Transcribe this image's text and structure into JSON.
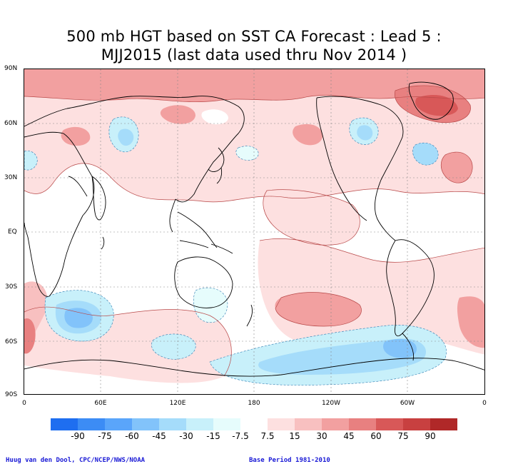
{
  "title": {
    "line1": "500 mb HGT based on SST CA Forecast : Lead 5 :",
    "line2": "MJJ2015 (last data used thru Nov 2014 )"
  },
  "axes": {
    "lat_labels": [
      "90N",
      "60N",
      "30N",
      "EQ",
      "30S",
      "60S",
      "90S"
    ],
    "lon_labels": [
      "0",
      "60E",
      "120E",
      "180",
      "120W",
      "60W",
      "0"
    ]
  },
  "colorbar": {
    "labels": [
      "-90",
      "-75",
      "-60",
      "-45",
      "-30",
      "-15",
      "-7.5",
      "7.5",
      "15",
      "30",
      "45",
      "60",
      "75",
      "90"
    ],
    "colors": [
      "#1e6ef0",
      "#3c8cf5",
      "#5aa5fa",
      "#82c3fa",
      "#a5dcfa",
      "#c8f0fa",
      "#e6fcfc",
      "#ffffff",
      "#fde0e0",
      "#f8c0c0",
      "#f2a0a0",
      "#e88080",
      "#d85858",
      "#c84040",
      "#b02828"
    ]
  },
  "credits": {
    "left": "Huug van den Dool, CPC/NCEP/NWS/NOAA",
    "right": "Base Period 1981-2010"
  }
}
